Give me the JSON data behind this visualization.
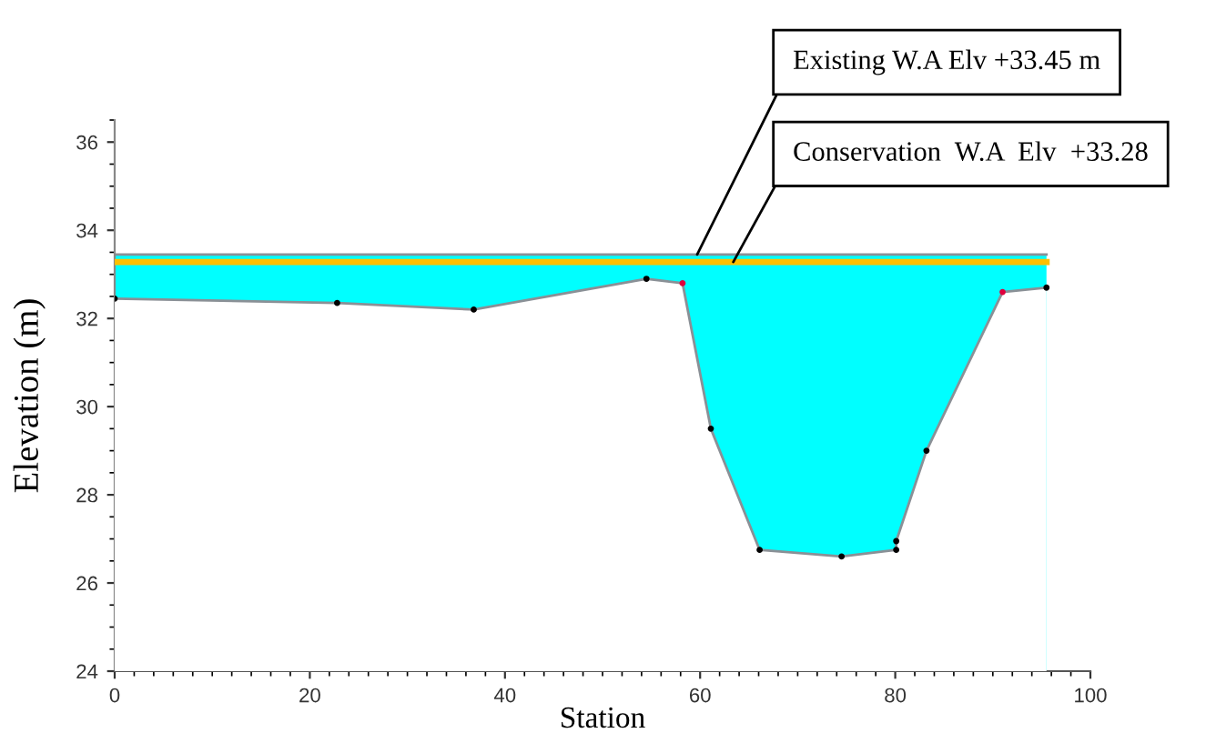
{
  "chart_data": {
    "type": "area",
    "xlabel": "Station",
    "ylabel": "Elevation (m)",
    "xlim": [
      0,
      100
    ],
    "xticks": [
      0,
      20,
      40,
      60,
      80,
      100
    ],
    "ylim": [
      24,
      36.5
    ],
    "yticks": [
      24,
      26,
      28,
      30,
      32,
      34,
      36
    ],
    "grid": false,
    "legend": false,
    "series": [
      {
        "color": "#00ffff",
        "x": [
          0,
          95.5
        ],
        "values": [
          33.45,
          33.45
        ]
      },
      {
        "type": "line",
        "color": "#ffc000",
        "x": [
          0,
          95.5
        ],
        "values": [
          33.28,
          33.28
        ]
      },
      {
        "color": "#ffffff",
        "marker": "circle",
        "x": [
          0,
          22.8,
          36.8,
          54.5,
          58.2,
          61.1,
          66.1,
          74.5,
          80.1,
          80.1,
          83.2,
          91.0,
          95.5
        ],
        "values": [
          32.45,
          32.35,
          32.2,
          32.9,
          32.8,
          29.5,
          26.75,
          26.6,
          26.75,
          26.95,
          29.0,
          32.6,
          32.7
        ],
        "colors": [
          "#000000",
          "#000000",
          "#000000",
          "#000000",
          "#e0003c",
          "#000000",
          "#000000",
          "#000000",
          "#000000",
          "#000000",
          "#000000",
          "#e0003c",
          "#000000"
        ]
      }
    ],
    "annotations": [
      {
        "text": "Existing W.A Elv +33.45 m",
        "x": 59.7,
        "y": 33.45
      },
      {
        "text": "Conservation  W.A  Elv  +33.28",
        "x": 63.4,
        "y": 33.28
      }
    ]
  }
}
